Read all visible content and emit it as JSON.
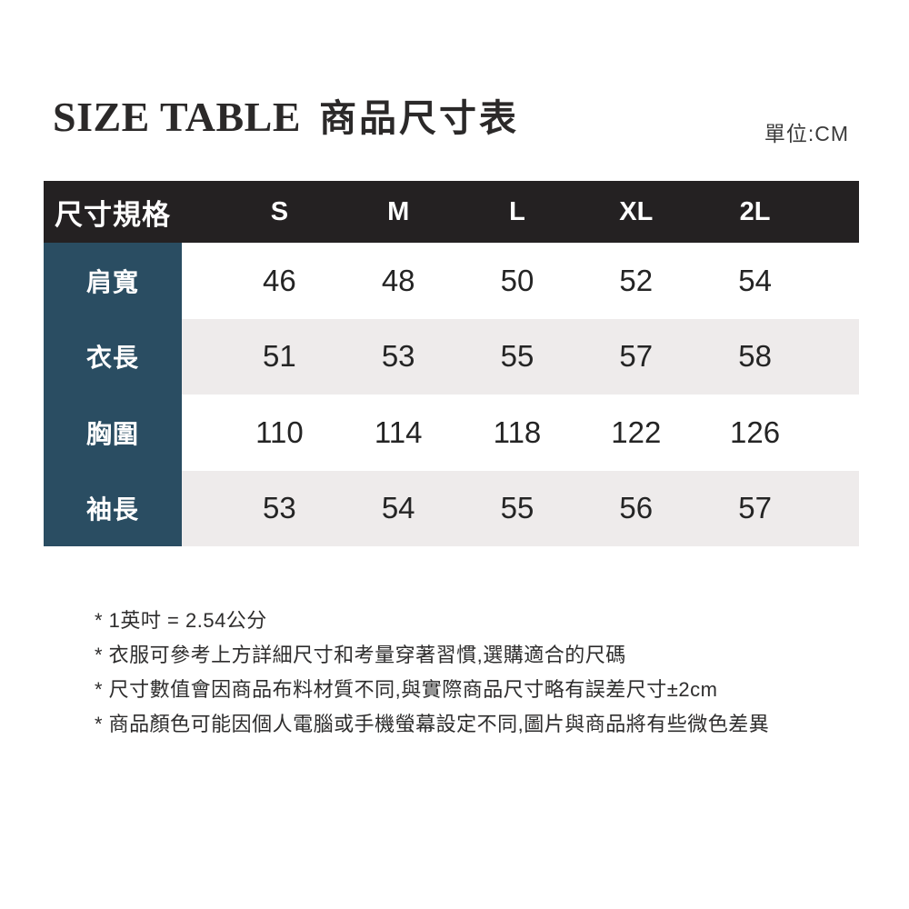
{
  "title": {
    "en": "SIZE TABLE",
    "zh": "商品尺寸表"
  },
  "unit_label": "單位:CM",
  "table": {
    "header_label": "尺寸規格",
    "sizes": [
      "S",
      "M",
      "L",
      "XL",
      "2L"
    ],
    "rows": [
      {
        "label": "肩寬",
        "values": [
          "46",
          "48",
          "50",
          "52",
          "54"
        ]
      },
      {
        "label": "衣長",
        "values": [
          "51",
          "53",
          "55",
          "57",
          "58"
        ]
      },
      {
        "label": "胸圍",
        "values": [
          "110",
          "114",
          "118",
          "122",
          "126"
        ]
      },
      {
        "label": "袖長",
        "values": [
          "53",
          "54",
          "55",
          "56",
          "57"
        ]
      }
    ]
  },
  "notes": [
    "* 1英吋 = 2.54公分",
    "* 衣服可參考上方詳細尺寸和考量穿著習慣,選購適合的尺碼",
    "* 尺寸數值會因商品布料材質不同,與實際商品尺寸略有誤差尺寸±2cm",
    "* 商品顏色可能因個人電腦或手機螢幕設定不同,圖片與商品將有些微色差異"
  ],
  "colors": {
    "header_bg": "#242122",
    "label_column_bg": "#2a4d62",
    "row_alt_bg": "#eeebeb",
    "text_dark": "#242424",
    "text_white": "#ffffff"
  }
}
